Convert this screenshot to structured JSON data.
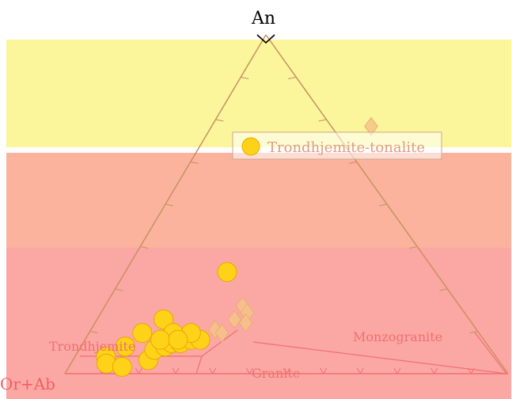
{
  "chart_data": {
    "type": "scatter",
    "diagram": "ternary An-Ab-Or feldspar classification",
    "vertices": {
      "top": "An",
      "left": "Or+Ab",
      "right": ""
    },
    "fields": {
      "trondhjemite": "Trondhjemite",
      "granite": "Granite",
      "monzogranite": "Monzogranite"
    },
    "legend": {
      "entries": [
        {
          "label": "Trondhjemite-tonalite",
          "marker": "circle",
          "color": "#ffd21a"
        }
      ]
    },
    "background_bands": [
      {
        "color": "#fbf59c",
        "name": "yellow-band"
      },
      {
        "color": "#fbb39d",
        "name": "salmon-band"
      },
      {
        "color": "#fba7a4",
        "name": "pink-band"
      }
    ],
    "series": [
      {
        "marker": "circle",
        "color": "#ffd21a",
        "points": [
          [
            0.23,
            0.3
          ],
          [
            0.15,
            0.16
          ],
          [
            0.12,
            0.12
          ],
          [
            0.1,
            0.08
          ],
          [
            0.07,
            0.05
          ],
          [
            0.08,
            0.03
          ],
          [
            0.12,
            0.02
          ],
          [
            0.17,
            0.04
          ],
          [
            0.17,
            0.07
          ],
          [
            0.19,
            0.08
          ],
          [
            0.2,
            0.09
          ],
          [
            0.22,
            0.09
          ],
          [
            0.24,
            0.1
          ],
          [
            0.26,
            0.1
          ],
          [
            0.23,
            0.12
          ],
          [
            0.19,
            0.12
          ],
          [
            0.17,
            0.1
          ],
          [
            0.21,
            0.1
          ]
        ]
      },
      {
        "marker": "diamond",
        "color": "#f5c38a",
        "points": [
          [
            0.36,
            0.73
          ],
          [
            0.31,
            0.2
          ],
          [
            0.33,
            0.18
          ],
          [
            0.34,
            0.15
          ],
          [
            0.31,
            0.16
          ],
          [
            0.28,
            0.13
          ],
          [
            0.3,
            0.12
          ]
        ]
      }
    ]
  }
}
